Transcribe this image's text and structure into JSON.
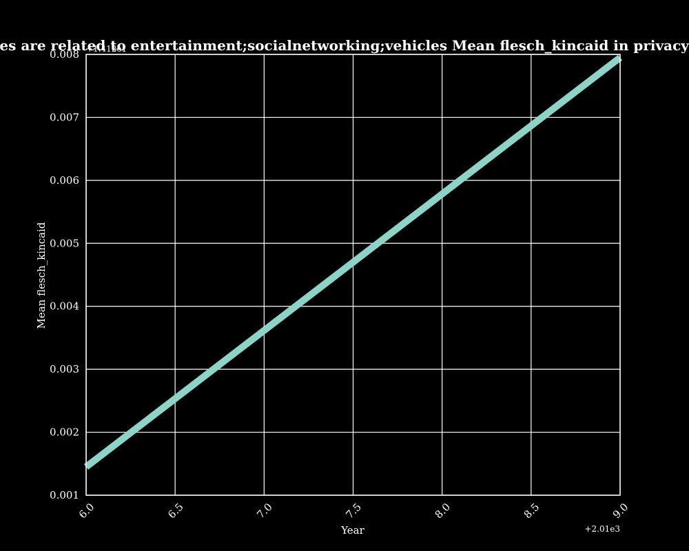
{
  "chart_data": {
    "type": "line",
    "title": "categories are related to entertainment;socialnetworking;vehicles Mean flesch_kincaid in privacy policies",
    "xlabel": "Year",
    "ylabel": "Mean flesch_kincaid",
    "x_offset_label": "+2.01e3",
    "y_offset_label": "+1.412e1",
    "x_ticks": [
      "6.0",
      "6.5",
      "7.0",
      "7.5",
      "8.0",
      "8.5",
      "9.0"
    ],
    "y_ticks": [
      "0.001",
      "0.002",
      "0.003",
      "0.004",
      "0.005",
      "0.006",
      "0.007",
      "0.008"
    ],
    "xlim": [
      6.0,
      9.0
    ],
    "ylim": [
      0.001,
      0.008
    ],
    "grid": true,
    "series": [
      {
        "x": [
          6.0,
          9.0
        ],
        "y": [
          0.00145,
          0.00795
        ],
        "color": "#8dd3c7"
      }
    ],
    "colors": {
      "background": "#000000",
      "axes": "#ffffff",
      "grid": "#ffffff",
      "line": "#8dd3c7"
    }
  }
}
